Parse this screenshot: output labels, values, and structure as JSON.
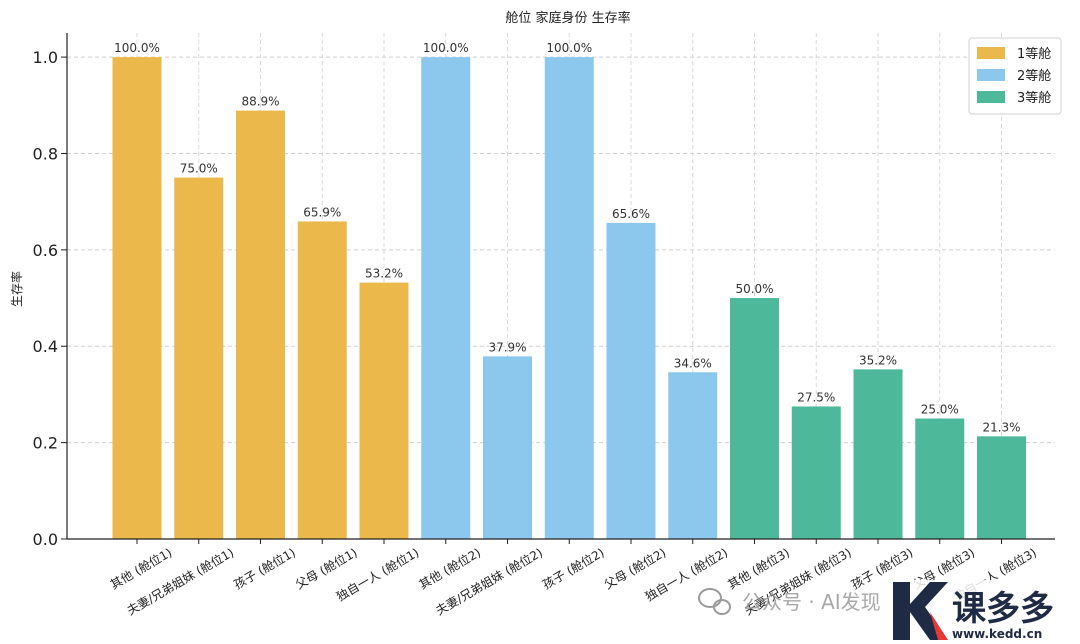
{
  "chart_data": {
    "type": "bar",
    "title": "舱位   家庭身份 生存率",
    "xlabel": "",
    "ylabel": "生存率",
    "ylim": [
      0,
      1.05
    ],
    "yticks": [
      "0.0",
      "0.2",
      "0.4",
      "0.6",
      "0.8",
      "1.0"
    ],
    "ytick_values": [
      0,
      0.2,
      0.4,
      0.6,
      0.8,
      1.0
    ],
    "grid": true,
    "legend_position": "top-right",
    "categories": [
      "其他 (舱位1)",
      "夫妻/兄弟姐妹 (舱位1)",
      "孩子 (舱位1)",
      "父母 (舱位1)",
      "独自一人 (舱位1)",
      "其他 (舱位2)",
      "夫妻/兄弟姐妹 (舱位2)",
      "孩子 (舱位2)",
      "父母 (舱位2)",
      "独自一人 (舱位2)",
      "其他 (舱位3)",
      "夫妻/兄弟姐妹 (舱位3)",
      "孩子 (舱位3)",
      "父母 (舱位3)",
      "独自一人 (舱位3)"
    ],
    "values": [
      1.0,
      0.75,
      0.889,
      0.659,
      0.532,
      1.0,
      0.379,
      1.0,
      0.656,
      0.346,
      0.5,
      0.275,
      0.352,
      0.25,
      0.213
    ],
    "value_labels": [
      "100.0%",
      "75.0%",
      "88.9%",
      "65.9%",
      "53.2%",
      "100.0%",
      "37.9%",
      "100.0%",
      "65.6%",
      "34.6%",
      "50.0%",
      "27.5%",
      "35.2%",
      "25.0%",
      "21.3%"
    ],
    "series_of_bar": [
      0,
      0,
      0,
      0,
      0,
      1,
      1,
      1,
      1,
      1,
      2,
      2,
      2,
      2,
      2
    ],
    "legend": [
      {
        "name": "1等舱",
        "color": "#EBB94B"
      },
      {
        "name": "2等舱",
        "color": "#8CC8EE"
      },
      {
        "name": "3等舱",
        "color": "#4DB89A"
      }
    ]
  },
  "watermark": {
    "text": "公众号 · AI发现",
    "logo_text": "课多多",
    "logo_url": "www.kedd.cn"
  }
}
